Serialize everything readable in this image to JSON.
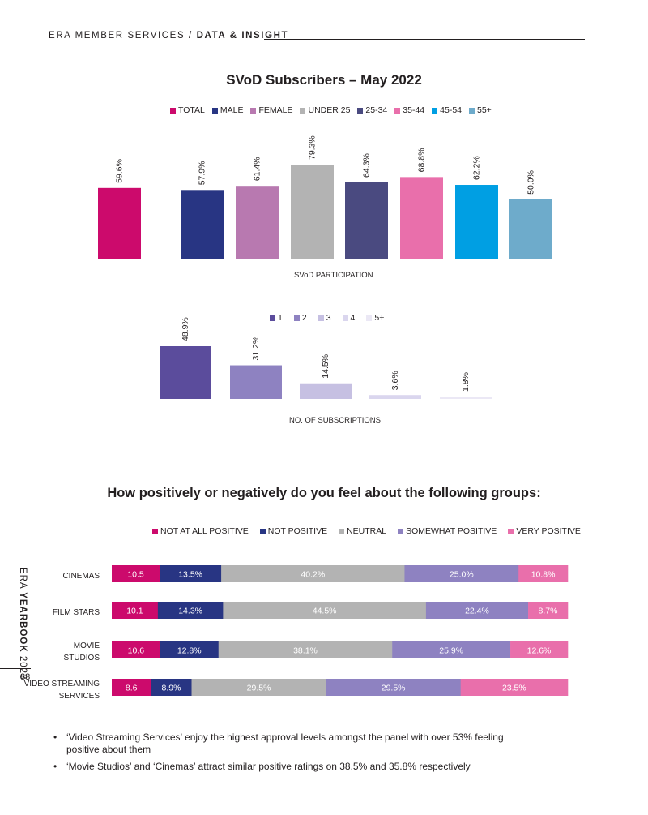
{
  "header": {
    "prefix": "ERA MEMBER SERVICES / ",
    "section": "DATA & INSIGHT"
  },
  "sidebar": {
    "brand": "ERA ",
    "yearbook": "YEARBOOK",
    "year": " 2023",
    "page_number": "88"
  },
  "chart_data": [
    {
      "type": "bar",
      "title": "SVoD Subscribers – May 2022",
      "xlabel": "SVoD PARTICIPATION",
      "categories": [
        "TOTAL",
        "MALE",
        "FEMALE",
        "UNDER 25",
        "25-34",
        "35-44",
        "45-54",
        "55+"
      ],
      "values": [
        59.6,
        57.9,
        61.4,
        79.3,
        64.3,
        68.8,
        62.2,
        50.0
      ],
      "labels": [
        "59.6%",
        "57.9%",
        "61.4%",
        "79.3%",
        "64.3%",
        "68.8%",
        "62.2%",
        "50.0%"
      ],
      "colors": [
        "#cc0a6c",
        "#283583",
        "#b879b0",
        "#b3b3b3",
        "#4a4a80",
        "#e96fab",
        "#009fe3",
        "#6eabcb"
      ],
      "ylim": [
        0,
        100
      ]
    },
    {
      "type": "bar",
      "title": "",
      "xlabel": "NO. OF SUBSCRIPTIONS",
      "categories": [
        "1",
        "2",
        "3",
        "4",
        "5+"
      ],
      "values": [
        48.9,
        31.2,
        14.5,
        3.6,
        1.8
      ],
      "labels": [
        "48.9%",
        "31.2%",
        "14.5%",
        "3.6%",
        "1.8%"
      ],
      "colors": [
        "#5b4c9c",
        "#8e82c1",
        "#c6c0e2",
        "#dad6ee",
        "#ebe8f5"
      ],
      "ylim": [
        0,
        100
      ]
    },
    {
      "type": "bar",
      "orientation": "horizontal-stacked",
      "title": "How positively or negatively do you feel about the following groups:",
      "categories": [
        "CINEMAS",
        "FILM STARS",
        "MOVIE STUDIOS",
        "VIDEO STREAMING SERVICES"
      ],
      "series": [
        {
          "name": "NOT AT ALL POSITIVE",
          "color": "#cc0a6c",
          "values": [
            10.5,
            10.1,
            10.6,
            8.6
          ],
          "labels": [
            "10.5",
            "10.1",
            "10.6",
            "8.6"
          ]
        },
        {
          "name": "NOT POSITIVE",
          "color": "#283583",
          "values": [
            13.5,
            14.3,
            12.8,
            8.9
          ],
          "labels": [
            "13.5%",
            "14.3%",
            "12.8%",
            "8.9%"
          ]
        },
        {
          "name": "NEUTRAL",
          "color": "#b3b3b3",
          "values": [
            40.2,
            44.5,
            38.1,
            29.5
          ],
          "labels": [
            "40.2%",
            "44.5%",
            "38.1%",
            "29.5%"
          ]
        },
        {
          "name": "SOMEWHAT POSITIVE",
          "color": "#8e82c1",
          "values": [
            25.0,
            22.4,
            25.9,
            29.5
          ],
          "labels": [
            "25.0%",
            "22.4%",
            "25.9%",
            "29.5%"
          ]
        },
        {
          "name": "VERY POSITIVE",
          "color": "#e96fab",
          "values": [
            10.8,
            8.7,
            12.6,
            23.5
          ],
          "labels": [
            "10.8%",
            "8.7%",
            "12.6%",
            "23.5%"
          ]
        }
      ]
    }
  ],
  "row_labels": [
    [
      "CINEMAS"
    ],
    [
      "FILM STARS"
    ],
    [
      "MOVIE",
      "STUDIOS"
    ],
    [
      "VIDEO STREAMING",
      "SERVICES"
    ]
  ],
  "bullets": [
    "‘Video Streaming Services’ enjoy the highest approval levels amongst the panel with over 53% feeling positive about them",
    "‘Movie Studios’ and ‘Cinemas’ attract similar positive ratings on 38.5% and 35.8% respectively"
  ]
}
